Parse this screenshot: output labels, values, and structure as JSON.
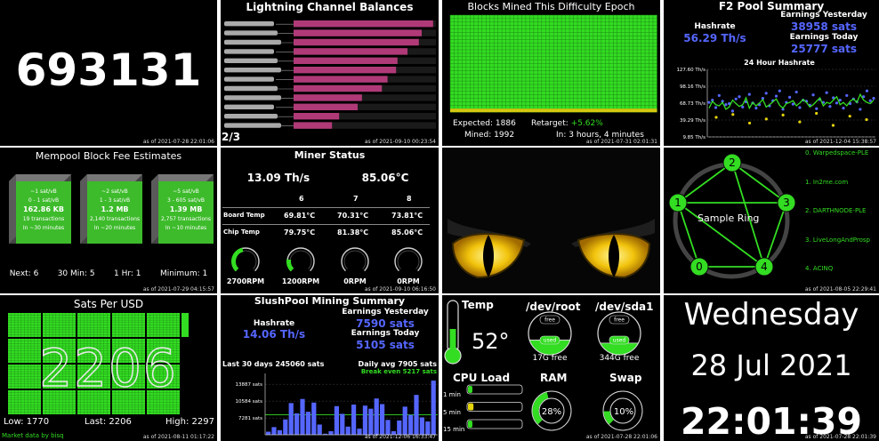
{
  "block_height": {
    "value": "693131",
    "timestamp": "as of 2021-07-28 22:01:06"
  },
  "lightning": {
    "title": "Lightning Channel Balances",
    "page": "2/3",
    "timestamp": "as of 2021-09-10 00:23:54",
    "bar_color": "#b03a78",
    "channel_fill_fractions": [
      0.98,
      0.9,
      0.88,
      0.8,
      0.73,
      0.72,
      0.66,
      0.62,
      0.48,
      0.45,
      0.32,
      0.27
    ]
  },
  "blocks_mined": {
    "title": "Blocks Mined This Difficulty Epoch",
    "expected_label": "Expected:",
    "expected_value": "1886",
    "mined_label": "Mined:",
    "mined_value": "1992",
    "retarget_label": "Retarget:",
    "retarget_value": "+5.62%",
    "in_label": "In: 3 hours, 4 minutes",
    "timestamp": "as of 2021-07-31 02:01:31",
    "grid_color": "#33dd22",
    "complete_color": "#d4c80f"
  },
  "f2pool": {
    "title": "F2 Pool Summary",
    "hashrate_label": "Hashrate",
    "hashrate_value": "56.29 Th/s",
    "earn_yesterday_label": "Earnings Yesterday",
    "earn_yesterday_value": "38958 sats",
    "earn_today_label": "Earnings Today",
    "earn_today_value": "25777 sats",
    "chart_title": "24 Hour Hashrate",
    "timestamp": "as of 2021-12-04 15:38:57",
    "accent_color": "#5566ff"
  },
  "mempool": {
    "title": "Mempool Block Fee Estimates",
    "blocks": [
      {
        "rate": "~1 sat/vB",
        "range": "0 - 1 sat/vB",
        "size": "162.86 KB",
        "tx": "19 transactions",
        "eta": "In ~30 minutes"
      },
      {
        "rate": "~2 sat/vB",
        "range": "1 - 3 sat/vB",
        "size": "1.2 MB",
        "tx": "2,140 transactions",
        "eta": "In ~20 minutes"
      },
      {
        "rate": "~5 sat/vB",
        "range": "3 - 605 sat/vB",
        "size": "1.39 MB",
        "tx": "2,757 transactions",
        "eta": "In ~10 minutes"
      }
    ],
    "footer": [
      "Next: 6",
      "30 Min: 5",
      "1 Hr: 1",
      "Minimum: 1"
    ],
    "timestamp": "as of 2021-07-29 04:15:57",
    "block_color": "#3dbb2b"
  },
  "miner": {
    "title": "Miner Status",
    "hashrate": "13.09 Th/s",
    "temp": "85.06°C",
    "boards": [
      "6",
      "7",
      "8"
    ],
    "board_temp_label": "Board Temp",
    "board_temps": [
      "69.81°C",
      "70.31°C",
      "73.81°C"
    ],
    "chip_temp_label": "Chip Temp",
    "chip_temps": [
      "79.75°C",
      "81.38°C",
      "85.06°C"
    ],
    "fans": [
      "2700RPM",
      "1200RPM",
      "0RPM",
      "0RPM"
    ],
    "fan_fractions": [
      0.45,
      0.2,
      0.0,
      0.0
    ],
    "timestamp": "as of 2021-09-10 06:16:50"
  },
  "cat": {
    "eye_color": "#f2c40c"
  },
  "ring": {
    "center_label": "Sample Ring",
    "nodes": [
      "0",
      "1",
      "2",
      "3",
      "4"
    ],
    "legend": [
      "0. Warpedspace-PLE",
      "1. In2me.com",
      "2. DARTHNODE-PLE",
      "3. LiveLongAndProsp",
      "4. ACINQ"
    ],
    "timestamp": "as of 2021-08-05 22:29:41",
    "color": "#33dd22"
  },
  "sats_per_usd": {
    "title": "Sats Per USD",
    "value": "2206",
    "low": "Low: 1770",
    "last": "Last: 2206",
    "high": "High: 2297",
    "source": "Market data by bisq",
    "timestamp": "as of 2021-08-11 01:17:22",
    "color": "#33dd22"
  },
  "slushpool": {
    "title": "SlushPool Mining Summary",
    "hashrate_label": "Hashrate",
    "hashrate_value": "14.06 Th/s",
    "earn_yesterday_label": "Earnings Yesterday",
    "earn_yesterday_value": "7590 sats",
    "earn_today_label": "Earnings Today",
    "earn_today_value": "5105 sats",
    "last30_label": "Last 30 days 245060 sats",
    "daily_avg_label": "Daily avg 7905 sats",
    "break_even_label": "Break even 5217 sats",
    "timestamp": "as of 2021-12-06 16:33:47",
    "accent_color": "#5566ff"
  },
  "system": {
    "temp_label": "Temp",
    "temp_value": "52°",
    "temp_fraction": 0.5,
    "root_label": "/dev/root",
    "root_free": "17G free",
    "root_used_fraction": 0.4,
    "sda1_label": "/dev/sda1",
    "sda1_free": "344G free",
    "sda1_used_fraction": 0.35,
    "free_word": "free",
    "used_word": "used",
    "cpu_label": "CPU Load",
    "cpu_rows": [
      {
        "label": "1 min",
        "fraction": 0.08,
        "color": "#33dd22"
      },
      {
        "label": "5 min",
        "fraction": 0.1,
        "color": "#e5d40c"
      },
      {
        "label": "15 min",
        "fraction": 0.08,
        "color": "#33dd22"
      }
    ],
    "ram_label": "RAM",
    "ram_value": "28%",
    "ram_fraction": 0.28,
    "swap_label": "Swap",
    "swap_value": "10%",
    "swap_fraction": 0.1,
    "timestamp": "as of 2021-07-28 22:01:06",
    "color": "#33dd22"
  },
  "clock": {
    "day": "Wednesday",
    "date": "28 Jul 2021",
    "time": "22:01:39",
    "timestamp": "as of 2021-07-28 22:01:39"
  },
  "chart_data": [
    {
      "type": "scatter",
      "title": "24 Hour Hashrate",
      "xlabel": "",
      "ylabel": "",
      "yticks": [
        "127.60 Th/s",
        "98.16 Th/s",
        "68.73 Th/s",
        "39.29 Th/s",
        "9.85 Th/s"
      ],
      "ylim": [
        9.85,
        127.6
      ],
      "series": [
        {
          "values": [
            70,
            74,
            61,
            82,
            72,
            66,
            68,
            55,
            76,
            80,
            62,
            71,
            84,
            69,
            60,
            66,
            77,
            86,
            64,
            73,
            81,
            90,
            58,
            70,
            79,
            67,
            88,
            61,
            74,
            72,
            65,
            83,
            59,
            75,
            70,
            87,
            63,
            78,
            69,
            74,
            60,
            82,
            68,
            76,
            71,
            58,
            80,
            90,
            73,
            77
          ]
        },
        {
          "values": [
            60,
            72,
            66,
            64,
            70,
            58,
            62,
            74,
            68,
            63,
            66,
            78,
            60,
            70,
            64,
            69,
            75,
            62,
            66,
            71,
            76,
            65,
            60,
            68,
            70,
            73,
            64,
            69,
            75,
            70,
            62,
            66,
            72,
            78,
            64,
            70,
            68,
            74,
            80,
            66,
            70,
            64,
            72,
            76,
            70,
            84,
            74,
            70,
            68,
            74
          ]
        },
        {
          "values": [
            44,
            49,
            34,
            41,
            48,
            36,
            51,
            30,
            46,
            40
          ]
        }
      ]
    },
    {
      "type": "bar",
      "title": "",
      "yticks": [
        "13887 sats",
        "10584 sats",
        "7281 sats"
      ],
      "ylim": [
        4000,
        16000
      ],
      "values": [
        4600,
        5500,
        4900,
        7000,
        10200,
        8200,
        11000,
        8500,
        10300,
        6000,
        4200,
        4700,
        9600,
        8100,
        5600,
        9900,
        5200,
        9700,
        9100,
        11100,
        10000,
        6900,
        4700,
        6800,
        9500,
        7900,
        11800,
        7400,
        6600,
        14600
      ]
    }
  ]
}
